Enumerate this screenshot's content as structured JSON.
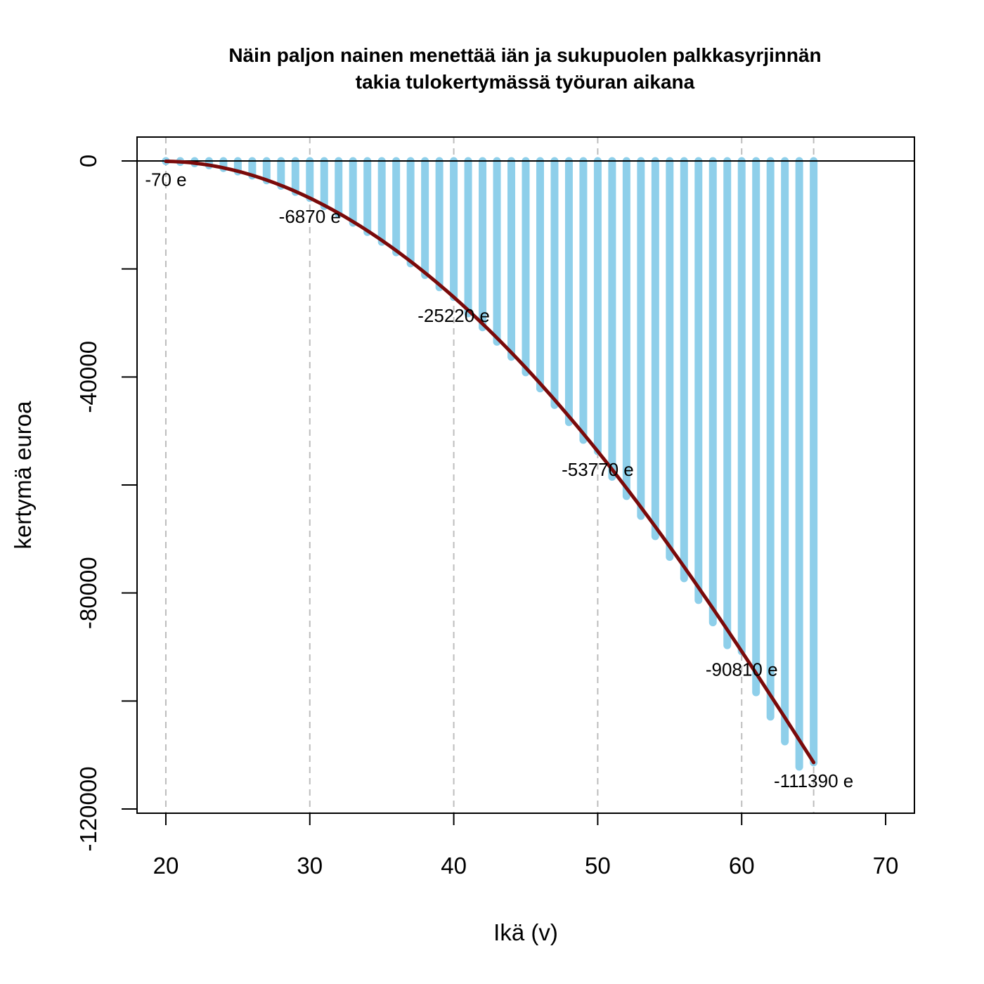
{
  "chart_data": {
    "type": "bar",
    "title_lines": [
      "Näin paljon nainen menettää iän ja sukupuolen palkkasyrjinnän",
      "takia tulokertymässä työuran aikana"
    ],
    "xlabel": "Ikä (v)",
    "ylabel": "kertymä euroa",
    "xlim": [
      18,
      72
    ],
    "ylim": [
      -120000,
      0
    ],
    "xticks": [
      20,
      30,
      40,
      50,
      60,
      70
    ],
    "yticks": [
      0,
      -40000,
      -80000,
      -120000
    ],
    "grid": "vertical dashed lines at 20, 30, 40, 50, 60, 65",
    "gridlines_x": [
      20,
      30,
      40,
      50,
      60,
      65
    ],
    "colors": {
      "bars": "#8ecfea",
      "curve": "#7a0a0a",
      "grid": "#bdbdbd",
      "axis": "#000000"
    },
    "series": [
      {
        "x": [
          20,
          21,
          22,
          23,
          24,
          25,
          26,
          27,
          28,
          29,
          30,
          31,
          32,
          33,
          34,
          35,
          36,
          37,
          38,
          39,
          40,
          41,
          42,
          43,
          44,
          45,
          46,
          47,
          48,
          49,
          50,
          51,
          52,
          53,
          54,
          55,
          56,
          57,
          58,
          59,
          60,
          61,
          62,
          63,
          64,
          65
        ],
        "values": [
          -70,
          -214,
          -460,
          -835,
          -1339,
          -1970,
          -2728,
          -3611,
          -4619,
          -5750,
          -6870,
          -8372,
          -9862,
          -11465,
          -13180,
          -15006,
          -16942,
          -18987,
          -21141,
          -23402,
          -25220,
          -28242,
          -30818,
          -33495,
          -36273,
          -39152,
          -42131,
          -45209,
          -48386,
          -51662,
          -53770,
          -58506,
          -62073,
          -65735,
          -69493,
          -73345,
          -77292,
          -81332,
          -85465,
          -89691,
          -90810,
          -98417,
          -102916,
          -107506,
          -112187,
          -111390
        ]
      }
    ],
    "labels": [
      {
        "x": 20,
        "value": -70,
        "text": "-70 e"
      },
      {
        "x": 30,
        "value": -6870,
        "text": "-6870 e"
      },
      {
        "x": 40,
        "value": -25220,
        "text": "-25220 e"
      },
      {
        "x": 50,
        "value": -53770,
        "text": "-53770 e"
      },
      {
        "x": 60,
        "value": -90810,
        "text": "-90810 e"
      },
      {
        "x": 65,
        "value": -111390,
        "text": "-111390 e"
      }
    ]
  }
}
